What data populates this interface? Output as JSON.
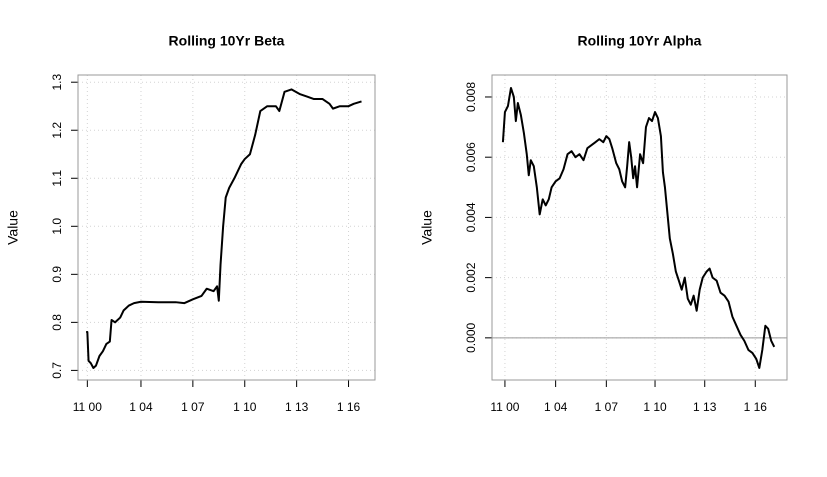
{
  "chart_data": [
    {
      "type": "line",
      "title": "Rolling 10Yr Beta",
      "ylabel": "Value",
      "color": "#000000",
      "grid": true,
      "xlim": [
        2000.36,
        2017.53
      ],
      "ylim": [
        0.68,
        1.315
      ],
      "xticks": [
        {
          "value": 2000.9,
          "label": "11 00"
        },
        {
          "value": 2004,
          "label": "1 04"
        },
        {
          "value": 2007,
          "label": "1 07"
        },
        {
          "value": 2010,
          "label": "1 10"
        },
        {
          "value": 2013,
          "label": "1 13"
        },
        {
          "value": 2016,
          "label": "1 16"
        }
      ],
      "yticks": [
        0.7,
        0.8,
        0.9,
        {
          "value": 1,
          "label": "1.0"
        },
        1.1,
        1.2,
        1.3
      ],
      "x": [
        2000.83,
        2000.9,
        2000.97,
        2001.1,
        2001.25,
        2001.4,
        2001.6,
        2001.8,
        2002.0,
        2002.2,
        2002.3,
        2002.5,
        2002.8,
        2003.0,
        2003.3,
        2003.6,
        2004.0,
        2005.0,
        2006.0,
        2006.5,
        2007.0,
        2007.5,
        2007.8,
        2008.2,
        2008.4,
        2008.5,
        2008.6,
        2008.75,
        2008.9,
        2009.1,
        2009.4,
        2009.8,
        2010.0,
        2010.3,
        2010.6,
        2010.9,
        2011.3,
        2011.8,
        2012.0,
        2012.3,
        2012.7,
        2013.2,
        2013.6,
        2014.0,
        2014.5,
        2014.9,
        2015.1,
        2015.5,
        2016.0,
        2016.3,
        2016.75
      ],
      "values": [
        0.78,
        0.78,
        0.72,
        0.715,
        0.705,
        0.71,
        0.73,
        0.74,
        0.755,
        0.76,
        0.805,
        0.8,
        0.81,
        0.825,
        0.835,
        0.84,
        0.843,
        0.842,
        0.842,
        0.84,
        0.848,
        0.855,
        0.87,
        0.865,
        0.875,
        0.845,
        0.92,
        1.0,
        1.06,
        1.08,
        1.1,
        1.13,
        1.14,
        1.15,
        1.19,
        1.24,
        1.25,
        1.25,
        1.24,
        1.28,
        1.285,
        1.275,
        1.27,
        1.265,
        1.265,
        1.255,
        1.245,
        1.25,
        1.25,
        1.255,
        1.26
      ]
    },
    {
      "type": "line",
      "title": "Rolling 10Yr Alpha",
      "ylabel": "Value",
      "color": "#000000",
      "grid": true,
      "hline": 0,
      "xlim": [
        2000.21,
        2017.78
      ],
      "ylim": [
        -0.0014,
        0.00873
      ],
      "xticks": [
        {
          "value": 2000.98,
          "label": "11 00"
        },
        {
          "value": 2004,
          "label": "1 04"
        },
        {
          "value": 2007.02,
          "label": "1 07"
        },
        {
          "value": 2009.92,
          "label": "1 10"
        },
        {
          "value": 2012.88,
          "label": "1 13"
        },
        {
          "value": 2015.89,
          "label": "1 16"
        }
      ],
      "yticks": [
        {
          "value": 0,
          "label": "0.000"
        },
        {
          "value": 0.002,
          "label": "0.002"
        },
        {
          "value": 0.004,
          "label": "0.004"
        },
        {
          "value": 0.006,
          "label": "0.006"
        },
        {
          "value": 0.008,
          "label": "0.008"
        }
      ],
      "x": [
        2000.86,
        2000.98,
        2001.16,
        2001.34,
        2001.51,
        2001.63,
        2001.75,
        2001.93,
        2002.11,
        2002.28,
        2002.4,
        2002.52,
        2002.7,
        2002.88,
        2003.05,
        2003.23,
        2003.41,
        2003.59,
        2003.76,
        2004.0,
        2004.24,
        2004.47,
        2004.71,
        2004.95,
        2005.18,
        2005.42,
        2005.66,
        2005.89,
        2006.13,
        2006.37,
        2006.6,
        2006.84,
        2007.02,
        2007.2,
        2007.37,
        2007.61,
        2007.79,
        2007.96,
        2008.14,
        2008.26,
        2008.38,
        2008.5,
        2008.62,
        2008.73,
        2008.85,
        2009.03,
        2009.21,
        2009.38,
        2009.56,
        2009.74,
        2009.92,
        2010.09,
        2010.27,
        2010.39,
        2010.51,
        2010.63,
        2010.8,
        2010.98,
        2011.16,
        2011.34,
        2011.51,
        2011.69,
        2011.87,
        2012.05,
        2012.22,
        2012.4,
        2012.58,
        2012.76,
        2012.99,
        2013.17,
        2013.35,
        2013.59,
        2013.82,
        2014.06,
        2014.3,
        2014.53,
        2014.77,
        2015.01,
        2015.24,
        2015.48,
        2015.72,
        2015.95,
        2016.13,
        2016.31,
        2016.49,
        2016.66,
        2016.84,
        2017.02
      ],
      "values": [
        0.0065,
        0.0075,
        0.0077,
        0.0083,
        0.008,
        0.0072,
        0.0078,
        0.0074,
        0.0068,
        0.0061,
        0.0054,
        0.0059,
        0.0057,
        0.005,
        0.0041,
        0.0046,
        0.0044,
        0.0046,
        0.005,
        0.0052,
        0.0053,
        0.0056,
        0.0061,
        0.0062,
        0.006,
        0.0061,
        0.0059,
        0.0063,
        0.0064,
        0.0065,
        0.0066,
        0.0065,
        0.0067,
        0.0066,
        0.0063,
        0.0058,
        0.0056,
        0.0052,
        0.005,
        0.0057,
        0.0065,
        0.006,
        0.0053,
        0.0057,
        0.005,
        0.0061,
        0.0058,
        0.007,
        0.0073,
        0.0072,
        0.0075,
        0.0073,
        0.0067,
        0.0055,
        0.005,
        0.0043,
        0.0033,
        0.0028,
        0.0022,
        0.0019,
        0.0016,
        0.002,
        0.0013,
        0.0011,
        0.0014,
        0.0009,
        0.0016,
        0.002,
        0.0022,
        0.0023,
        0.002,
        0.0019,
        0.0015,
        0.0014,
        0.0012,
        0.0007,
        0.0004,
        0.0001,
        -0.0001,
        -0.0004,
        -0.0005,
        -0.0007,
        -0.001,
        -0.0004,
        0.0004,
        0.0003,
        -0.0001,
        -0.0003
      ]
    }
  ]
}
